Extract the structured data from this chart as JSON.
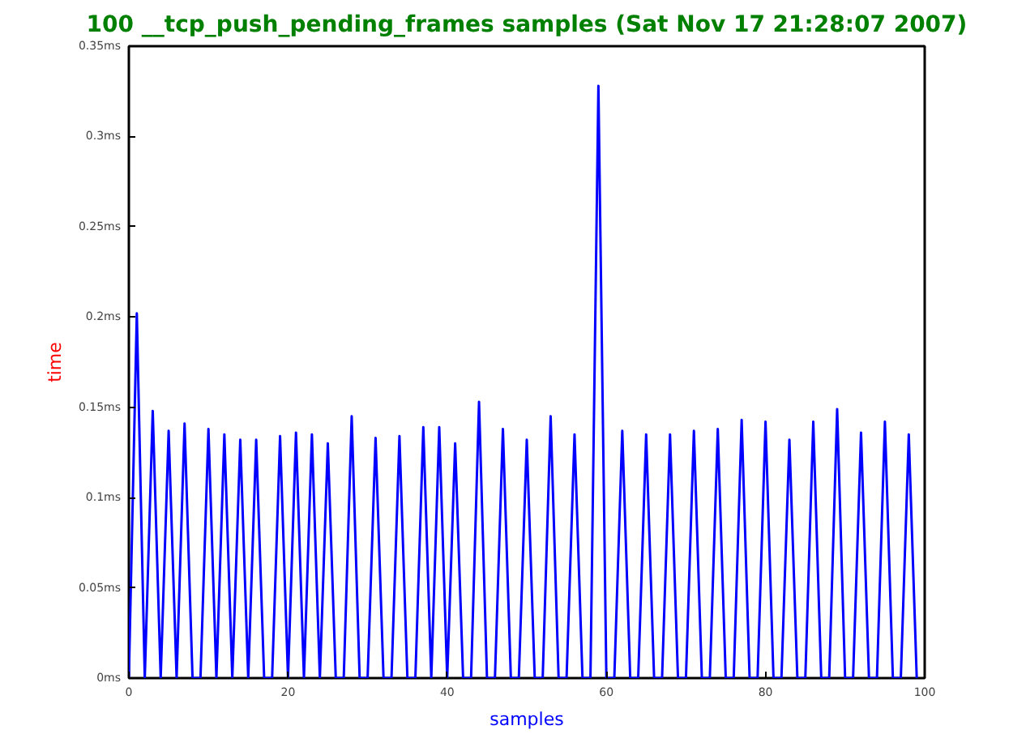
{
  "chart_data": {
    "type": "line",
    "title": "100 __tcp_push_pending_frames samples (Sat Nov 17 21:28:07 2007)",
    "xlabel": "samples",
    "ylabel": "time",
    "x": [
      0,
      1,
      2,
      3,
      4,
      5,
      6,
      7,
      8,
      9,
      10,
      11,
      12,
      13,
      14,
      15,
      16,
      17,
      18,
      19,
      20,
      21,
      22,
      23,
      24,
      25,
      26,
      27,
      28,
      29,
      30,
      31,
      32,
      33,
      34,
      35,
      36,
      37,
      38,
      39,
      40,
      41,
      42,
      43,
      44,
      45,
      46,
      47,
      48,
      49,
      50,
      51,
      52,
      53,
      54,
      55,
      56,
      57,
      58,
      59,
      60,
      61,
      62,
      63,
      64,
      65,
      66,
      67,
      68,
      69,
      70,
      71,
      72,
      73,
      74,
      75,
      76,
      77,
      78,
      79,
      80,
      81,
      82,
      83,
      84,
      85,
      86,
      87,
      88,
      89,
      90,
      91,
      92,
      93,
      94,
      95,
      96,
      97,
      98,
      99
    ],
    "series": [
      {
        "color": "#0000ff",
        "values": [
          0,
          0.202,
          0,
          0.148,
          0,
          0.137,
          0,
          0.141,
          0,
          0,
          0.138,
          0,
          0.135,
          0,
          0.132,
          0,
          0.132,
          0,
          0,
          0.134,
          0,
          0.136,
          0,
          0.135,
          0,
          0.13,
          0,
          0,
          0.145,
          0,
          0,
          0.133,
          0,
          0,
          0.134,
          0,
          0,
          0.139,
          0,
          0.139,
          0,
          0.13,
          0,
          0,
          0.153,
          0,
          0,
          0.138,
          0,
          0,
          0.132,
          0,
          0,
          0.145,
          0,
          0,
          0.135,
          0,
          0,
          0.328,
          0,
          0,
          0.137,
          0,
          0,
          0.135,
          0,
          0,
          0.135,
          0,
          0,
          0.137,
          0,
          0,
          0.138,
          0,
          0,
          0.143,
          0,
          0,
          0.142,
          0,
          0,
          0.132,
          0,
          0,
          0.142,
          0,
          0,
          0.149,
          0,
          0,
          0.136,
          0,
          0,
          0.142,
          0,
          0,
          0.135,
          0
        ]
      }
    ],
    "xlim": [
      0,
      100
    ],
    "ylim": [
      0,
      0.35
    ],
    "xticks": [
      0,
      20,
      40,
      60,
      80,
      100
    ],
    "yticks": [
      {
        "value": 0,
        "label": "0ms"
      },
      {
        "value": 0.05,
        "label": "0.05ms"
      },
      {
        "value": 0.1,
        "label": "0.1ms"
      },
      {
        "value": 0.15,
        "label": "0.15ms"
      },
      {
        "value": 0.2,
        "label": "0.2ms"
      },
      {
        "value": 0.25,
        "label": "0.25ms"
      },
      {
        "value": 0.3,
        "label": "0.3ms"
      },
      {
        "value": 0.35,
        "label": "0.35ms"
      }
    ],
    "grid": false,
    "marker": "none",
    "line_style": "solid"
  }
}
